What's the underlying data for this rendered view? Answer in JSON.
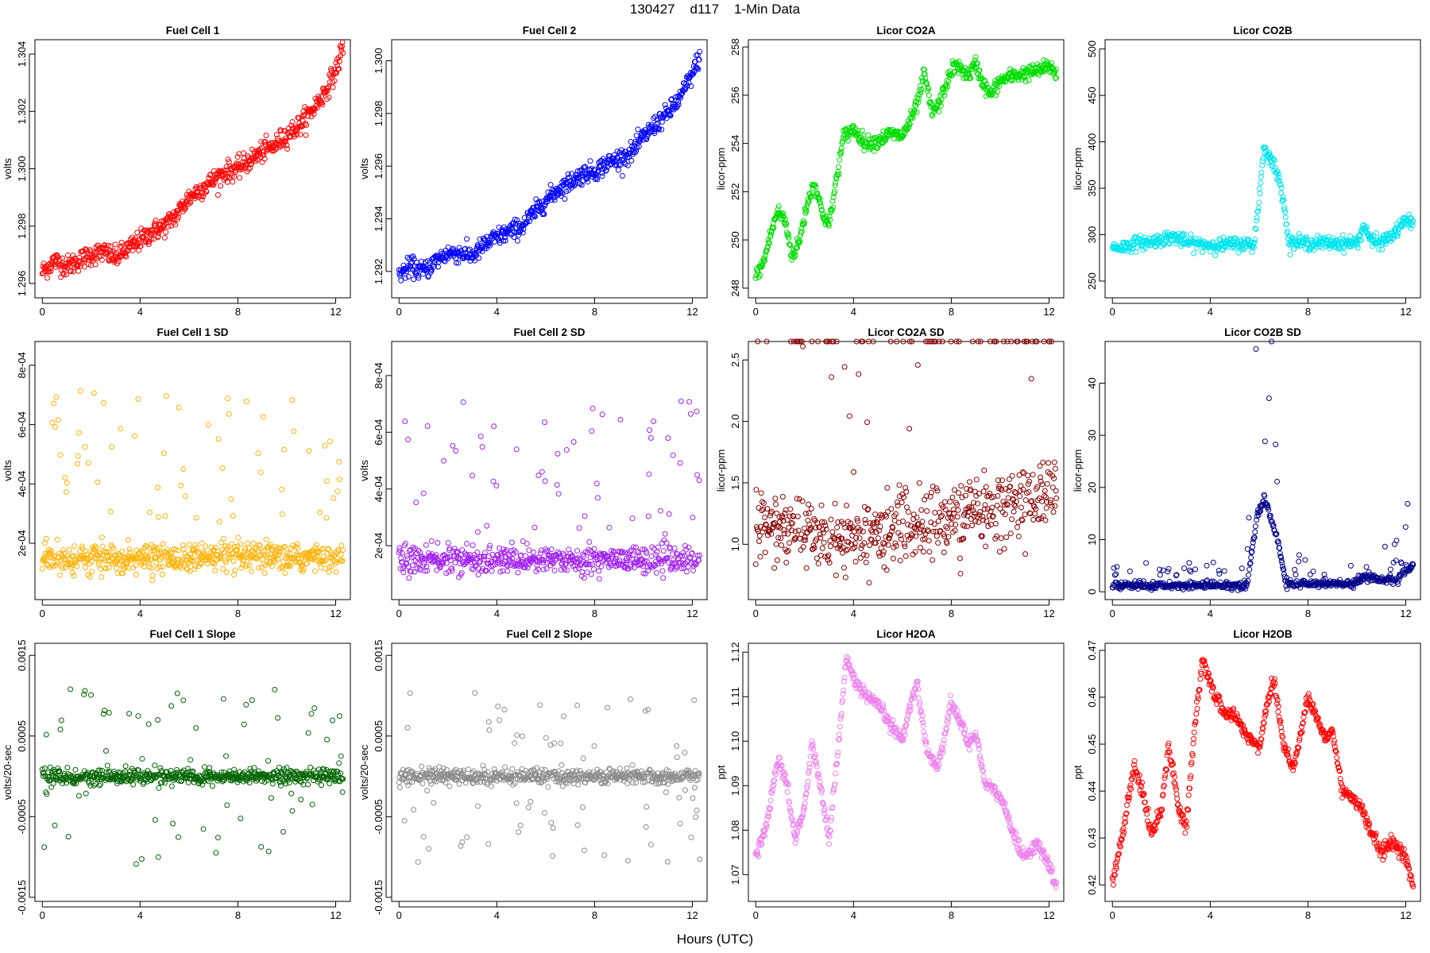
{
  "page": {
    "title": "130427    d117    1-Min Data",
    "x_label": "Hours (UTC)"
  },
  "chart_data": [
    {
      "type": "scatter",
      "title": "Fuel Cell 1",
      "ylabel": "volts",
      "color": "#ff0000",
      "xlim": [
        -0.3,
        12.6
      ],
      "ylim": [
        1.2955,
        1.3045
      ],
      "xticks": [
        0,
        4,
        8,
        12
      ],
      "yticks": [
        1.296,
        1.298,
        1.3,
        1.302,
        1.304
      ],
      "ytick_labels": [
        "1.296",
        "1.298",
        "1.300",
        "1.302",
        "1.304"
      ],
      "x": [
        0,
        0.5,
        1,
        1.5,
        2,
        2.5,
        3,
        3.5,
        4,
        4.5,
        5,
        5.5,
        6,
        6.5,
        7,
        7.5,
        8,
        8.5,
        9,
        9.5,
        10,
        10.5,
        11,
        11.5,
        12,
        12.3
      ],
      "y": [
        1.2964,
        1.2968,
        1.2966,
        1.2968,
        1.297,
        1.2971,
        1.2969,
        1.2972,
        1.2975,
        1.2978,
        1.298,
        1.2984,
        1.299,
        1.2993,
        1.2996,
        1.2999,
        1.3,
        1.3003,
        1.3006,
        1.3008,
        1.3012,
        1.3015,
        1.302,
        1.3026,
        1.3034,
        1.3043
      ],
      "noise": 0.0003
    },
    {
      "type": "scatter",
      "title": "Fuel Cell 2",
      "ylabel": "volts",
      "color": "#0000ff",
      "xlim": [
        -0.3,
        12.6
      ],
      "ylim": [
        1.291,
        1.3008
      ],
      "xticks": [
        0,
        4,
        8,
        12
      ],
      "yticks": [
        1.292,
        1.294,
        1.296,
        1.298,
        1.3
      ],
      "ytick_labels": [
        "1.292",
        "1.294",
        "1.296",
        "1.298",
        "1.300"
      ],
      "x": [
        0,
        0.5,
        1,
        1.5,
        2,
        2.5,
        3,
        3.5,
        4,
        4.5,
        5,
        5.5,
        6,
        6.5,
        7,
        7.5,
        8,
        8.5,
        9,
        9.5,
        10,
        10.5,
        11,
        11.5,
        12,
        12.3
      ],
      "y": [
        1.2919,
        1.2922,
        1.292,
        1.2924,
        1.2927,
        1.2927,
        1.2926,
        1.293,
        1.2933,
        1.2935,
        1.2937,
        1.2942,
        1.2947,
        1.2951,
        1.2954,
        1.2957,
        1.2958,
        1.2961,
        1.2963,
        1.2965,
        1.2971,
        1.2976,
        1.298,
        1.2986,
        1.2995,
        1.3002
      ],
      "noise": 0.0003
    },
    {
      "type": "scatter",
      "title": "Licor CO2A",
      "ylabel": "licor-ppm",
      "color": "#00dd00",
      "xlim": [
        -0.3,
        12.6
      ],
      "ylim": [
        247.6,
        258.3
      ],
      "xticks": [
        0,
        4,
        8,
        12
      ],
      "yticks": [
        248,
        250,
        252,
        254,
        256,
        258
      ],
      "ytick_labels": [
        "248",
        "250",
        "252",
        "254",
        "256",
        "258"
      ],
      "x": [
        0,
        0.3,
        0.6,
        0.9,
        1.2,
        1.5,
        1.8,
        2.1,
        2.4,
        2.7,
        3.0,
        3.3,
        3.6,
        4.0,
        4.5,
        5.0,
        5.5,
        6.0,
        6.3,
        6.6,
        6.9,
        7.2,
        7.5,
        7.8,
        8.1,
        8.4,
        8.7,
        9.0,
        9.3,
        9.6,
        10.0,
        10.5,
        11.0,
        11.5,
        12.0,
        12.3
      ],
      "y": [
        248.5,
        249.0,
        250.2,
        251.2,
        250.8,
        249.3,
        250.0,
        251.5,
        252.4,
        251.2,
        250.6,
        252.5,
        254.3,
        254.6,
        254.0,
        254.1,
        254.4,
        254.3,
        254.9,
        255.6,
        256.9,
        255.3,
        255.6,
        256.5,
        257.2,
        257.1,
        256.8,
        257.3,
        256.5,
        256.0,
        256.6,
        256.8,
        256.9,
        257.0,
        257.2,
        256.9
      ],
      "noise": 0.25
    },
    {
      "type": "scatter",
      "title": "Licor CO2B",
      "ylabel": "licor-ppm",
      "color": "#00e5ee",
      "xlim": [
        -0.3,
        12.6
      ],
      "ylim": [
        232,
        510
      ],
      "xticks": [
        0,
        4,
        8,
        12
      ],
      "yticks": [
        250,
        300,
        350,
        400,
        450,
        500
      ],
      "ytick_labels": [
        "250",
        "300",
        "350",
        "400",
        "450",
        "500"
      ],
      "x": [
        0,
        0.5,
        1,
        1.5,
        2,
        2.5,
        3,
        3.5,
        4,
        4.5,
        5,
        5.4,
        5.8,
        6.0,
        6.2,
        6.4,
        6.6,
        6.8,
        7.0,
        7.2,
        8,
        9,
        10,
        10.3,
        10.6,
        11,
        11.5,
        11.8,
        12.0,
        12.3
      ],
      "y": [
        286,
        287,
        291,
        292,
        295,
        298,
        292,
        290,
        289,
        289,
        290,
        290,
        289,
        340,
        395,
        385,
        375,
        360,
        340,
        292,
        291,
        291,
        291,
        310,
        292,
        292,
        300,
        310,
        315,
        312
      ],
      "noise": 6
    },
    {
      "type": "scatter",
      "title": "Fuel Cell 1 SD",
      "ylabel": "volts",
      "color": "#ffb000",
      "xlim": [
        -0.3,
        12.6
      ],
      "ylim": [
        1e-05,
        0.00088
      ],
      "xticks": [
        0,
        4,
        8,
        12
      ],
      "yticks": [
        0.0002,
        0.0004,
        0.0006,
        0.0008
      ],
      "ytick_labels": [
        "2e-04",
        "4e-04",
        "6e-04",
        "8e-04"
      ],
      "x": [
        0,
        12.3
      ],
      "y": [
        0.00015,
        0.00015
      ],
      "noise": 4e-05
    },
    {
      "type": "scatter",
      "title": "Fuel Cell 2 SD",
      "ylabel": "volts",
      "color": "#a020f0",
      "xlim": [
        -0.3,
        12.6
      ],
      "ylim": [
        1e-05,
        0.00092
      ],
      "xticks": [
        0,
        4,
        8,
        12
      ],
      "yticks": [
        0.0002,
        0.0004,
        0.0006,
        0.0008
      ],
      "ytick_labels": [
        "2e-04",
        "4e-04",
        "6e-04",
        "8e-04"
      ],
      "x": [
        0,
        12.3
      ],
      "y": [
        0.00015,
        0.00015
      ],
      "noise": 4e-05
    },
    {
      "type": "scatter",
      "title": "Licor CO2A SD",
      "ylabel": "licor-ppm",
      "color": "#8b0000",
      "xlim": [
        -0.3,
        12.6
      ],
      "ylim": [
        0.55,
        2.65
      ],
      "xticks": [
        0,
        4,
        8,
        12
      ],
      "yticks": [
        1.0,
        1.5,
        2.0,
        2.5
      ],
      "ytick_labels": [
        "1.0",
        "1.5",
        "2.0",
        "2.5"
      ],
      "x": [
        0,
        4,
        8,
        12.3
      ],
      "y": [
        1.15,
        1.05,
        1.2,
        1.45
      ],
      "noise": 0.25
    },
    {
      "type": "scatter",
      "title": "Licor CO2B SD",
      "ylabel": "licor-ppm",
      "color": "#00008b",
      "xlim": [
        -0.3,
        12.6
      ],
      "ylim": [
        -1.5,
        48
      ],
      "xticks": [
        0,
        4,
        8,
        12
      ],
      "yticks": [
        0,
        10,
        20,
        30,
        40
      ],
      "ytick_labels": [
        "0",
        "10",
        "20",
        "30",
        "40"
      ],
      "x": [
        0,
        5.5,
        5.9,
        6.2,
        6.5,
        6.8,
        7.1,
        9.9,
        10.2,
        11.6,
        12.0,
        12.3
      ],
      "y": [
        1.2,
        1.2,
        14,
        18,
        14,
        9,
        1.5,
        1.5,
        3,
        2,
        4,
        5
      ],
      "noise": 0.6
    },
    {
      "type": "scatter",
      "title": "Fuel Cell 1 Slope",
      "ylabel": "volts/20-sec",
      "color": "#006400",
      "xlim": [
        -0.3,
        12.6
      ],
      "ylim": [
        -0.00155,
        0.00165
      ],
      "xticks": [
        0,
        4,
        8,
        12
      ],
      "yticks": [
        -0.0015,
        -0.0005,
        0.0005,
        0.0015
      ],
      "ytick_labels": [
        "-0.0015",
        "-0.0005",
        "0.0005",
        "0.0015"
      ],
      "x": [
        0,
        12.3
      ],
      "y": [
        0,
        0
      ],
      "noise": 8e-05
    },
    {
      "type": "scatter",
      "title": "Fuel Cell 2 Slope",
      "ylabel": "volts/20-sec",
      "color": "#8c8c8c",
      "xlim": [
        -0.3,
        12.6
      ],
      "ylim": [
        -0.00155,
        0.00165
      ],
      "xticks": [
        0,
        4,
        8,
        12
      ],
      "yticks": [
        -0.0015,
        -0.0005,
        0.0005,
        0.0015
      ],
      "ytick_labels": [
        "-0.0015",
        "-0.0005",
        "0.0005",
        "0.0015"
      ],
      "x": [
        0,
        12.3
      ],
      "y": [
        0,
        0
      ],
      "noise": 8e-05
    },
    {
      "type": "scatter",
      "title": "Licor H2OA",
      "ylabel": "ppt",
      "color": "#ee82ee",
      "xlim": [
        -0.3,
        12.6
      ],
      "ylim": [
        1.064,
        1.122
      ],
      "xticks": [
        0,
        4,
        8,
        12
      ],
      "yticks": [
        1.07,
        1.08,
        1.09,
        1.1,
        1.11,
        1.12
      ],
      "ytick_labels": [
        "1.07",
        "1.08",
        "1.09",
        "1.10",
        "1.11",
        "1.12"
      ],
      "x": [
        0,
        0.4,
        0.9,
        1.3,
        1.6,
        2.0,
        2.3,
        2.7,
        3.0,
        3.4,
        3.7,
        4.0,
        4.5,
        5.0,
        5.5,
        6.0,
        6.3,
        6.6,
        7.0,
        7.4,
        7.7,
        8.0,
        8.4,
        8.7,
        9.0,
        9.4,
        9.8,
        10.2,
        10.6,
        11.0,
        11.5,
        12.0,
        12.3
      ],
      "y": [
        1.074,
        1.08,
        1.096,
        1.09,
        1.078,
        1.085,
        1.1,
        1.088,
        1.078,
        1.1,
        1.119,
        1.114,
        1.11,
        1.108,
        1.104,
        1.1,
        1.108,
        1.113,
        1.098,
        1.094,
        1.1,
        1.109,
        1.104,
        1.099,
        1.102,
        1.09,
        1.089,
        1.085,
        1.078,
        1.074,
        1.077,
        1.072,
        1.067
      ],
      "noise": 0.0012
    },
    {
      "type": "scatter",
      "title": "Licor H2OB",
      "ylabel": "ppt",
      "color": "#ff0000",
      "xlim": [
        -0.3,
        12.6
      ],
      "ylim": [
        0.4165,
        0.4715
      ],
      "xticks": [
        0,
        4,
        8,
        12
      ],
      "yticks": [
        0.42,
        0.43,
        0.44,
        0.45,
        0.46,
        0.47
      ],
      "ytick_labels": [
        "0.42",
        "0.43",
        "0.44",
        "0.45",
        "0.46",
        "0.47"
      ],
      "x": [
        0,
        0.4,
        0.9,
        1.3,
        1.6,
        2.0,
        2.3,
        2.7,
        3.0,
        3.4,
        3.7,
        4.0,
        4.5,
        5.0,
        5.5,
        6.0,
        6.3,
        6.6,
        7.0,
        7.4,
        7.7,
        8.0,
        8.4,
        8.7,
        9.0,
        9.4,
        9.8,
        10.2,
        10.6,
        11.0,
        11.5,
        12.0,
        12.3
      ],
      "y": [
        0.421,
        0.43,
        0.446,
        0.438,
        0.431,
        0.436,
        0.45,
        0.437,
        0.432,
        0.455,
        0.468,
        0.463,
        0.457,
        0.456,
        0.452,
        0.449,
        0.458,
        0.464,
        0.45,
        0.445,
        0.452,
        0.46,
        0.455,
        0.451,
        0.453,
        0.44,
        0.439,
        0.436,
        0.431,
        0.427,
        0.429,
        0.426,
        0.419
      ],
      "noise": 0.0012
    }
  ]
}
